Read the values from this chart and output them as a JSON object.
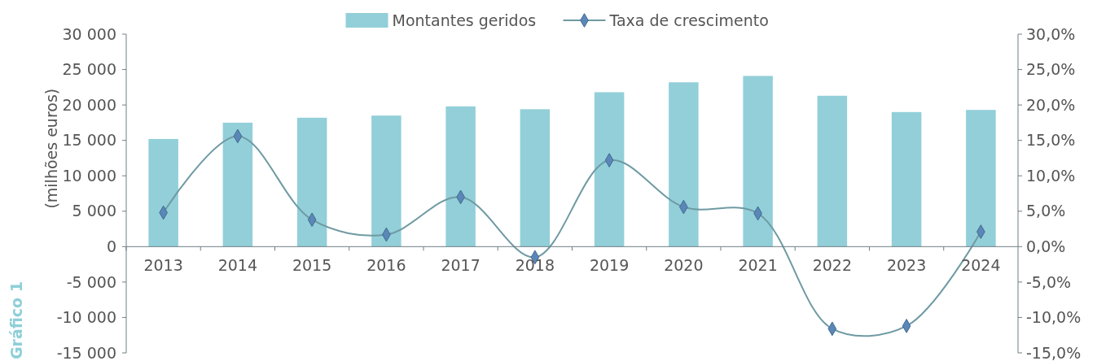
{
  "chart_data": {
    "type": "bar",
    "categories": [
      "2013",
      "2014",
      "2015",
      "2016",
      "2017",
      "2018",
      "2019",
      "2020",
      "2021",
      "2022",
      "2023",
      "2024"
    ],
    "series": [
      {
        "name": "Montantes geridos",
        "color": "#92cfd9",
        "values": [
          15200,
          17500,
          18200,
          18500,
          19800,
          19400,
          21800,
          23200,
          24100,
          21300,
          19000,
          19300
        ]
      },
      {
        "name": "Taxa de crescimento",
        "type": "line",
        "axis": "y2",
        "color": "#6f9aa3",
        "marker": "diamond",
        "values": [
          4.8,
          15.6,
          3.8,
          1.7,
          7.0,
          -1.5,
          12.2,
          5.6,
          4.7,
          -11.6,
          -11.2,
          2.1
        ]
      }
    ],
    "ylabel": "(milhões euros)",
    "ylim": [
      -15000,
      30000
    ],
    "yticks": [
      {
        "value": -15000,
        "label": "-15 000"
      },
      {
        "value": -10000,
        "label": "-10 000"
      },
      {
        "value": -5000,
        "label": "-5 000"
      },
      0,
      {
        "value": 5000,
        "label": "5 000"
      },
      {
        "value": 10000,
        "label": "10 000"
      },
      {
        "value": 15000,
        "label": "15 000"
      },
      {
        "value": 20000,
        "label": "20 000"
      },
      {
        "value": 25000,
        "label": "25 000"
      },
      {
        "value": 30000,
        "label": "30 000"
      }
    ],
    "y2lim": [
      -15,
      30
    ],
    "y2ticks": [
      {
        "value": -15,
        "label": "-15,0%"
      },
      {
        "value": -10,
        "label": "-10,0%"
      },
      {
        "value": -5,
        "label": "-5,0%"
      },
      {
        "value": 0,
        "label": "0,0%"
      },
      {
        "value": 5,
        "label": "5,0%"
      },
      {
        "value": 10,
        "label": "10,0%"
      },
      {
        "value": 15,
        "label": "15,0%"
      },
      {
        "value": 20,
        "label": "20,0%"
      },
      {
        "value": 25,
        "label": "25,0%"
      },
      {
        "value": 30,
        "label": "30,0%"
      }
    ],
    "legend": "top",
    "grid": false,
    "annotations": [
      "Gráfico 1"
    ]
  }
}
